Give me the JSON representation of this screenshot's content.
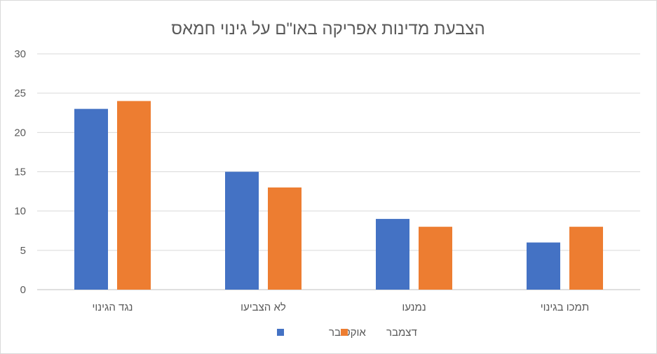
{
  "chart_data": {
    "type": "bar",
    "title": "הצבעת מדינות אפריקה באו\"ם על גינוי חמאס",
    "categories": [
      "נגד הגינוי",
      "לא הצביעו",
      "נמנעו",
      "תמכו בגינוי"
    ],
    "series": [
      {
        "name": "אוקטובר",
        "values": [
          23,
          15,
          9,
          6
        ],
        "color": "#4472C4"
      },
      {
        "name": "דצמבר",
        "values": [
          24,
          13,
          8,
          8
        ],
        "color": "#ED7D31"
      }
    ],
    "ylim": [
      0,
      30
    ],
    "yticks": [
      0,
      5,
      10,
      15,
      20,
      25,
      30
    ],
    "grid": true,
    "legend": "bottom"
  }
}
